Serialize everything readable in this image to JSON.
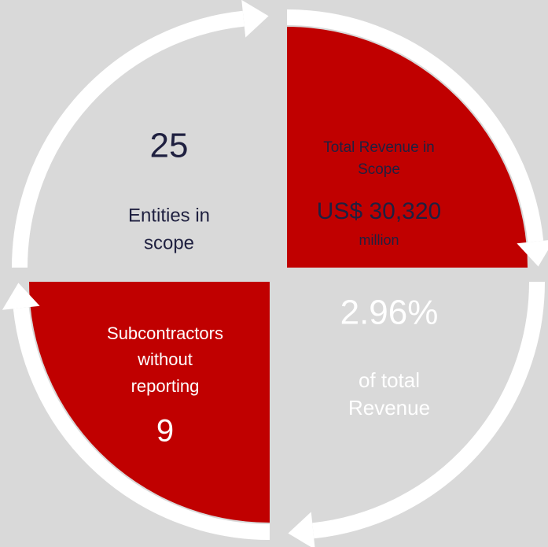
{
  "quadrants": [
    {
      "lines": [
        "25",
        "Entities in",
        "scope"
      ]
    },
    {
      "lines": [
        "Total Revenue in",
        "Scope",
        "US$ 30,320",
        "million"
      ]
    },
    {
      "lines": [
        "2.96%",
        "of total",
        "Revenue"
      ]
    },
    {
      "lines": [
        "Subcontractors",
        "without",
        "reporting",
        "9"
      ]
    }
  ]
}
